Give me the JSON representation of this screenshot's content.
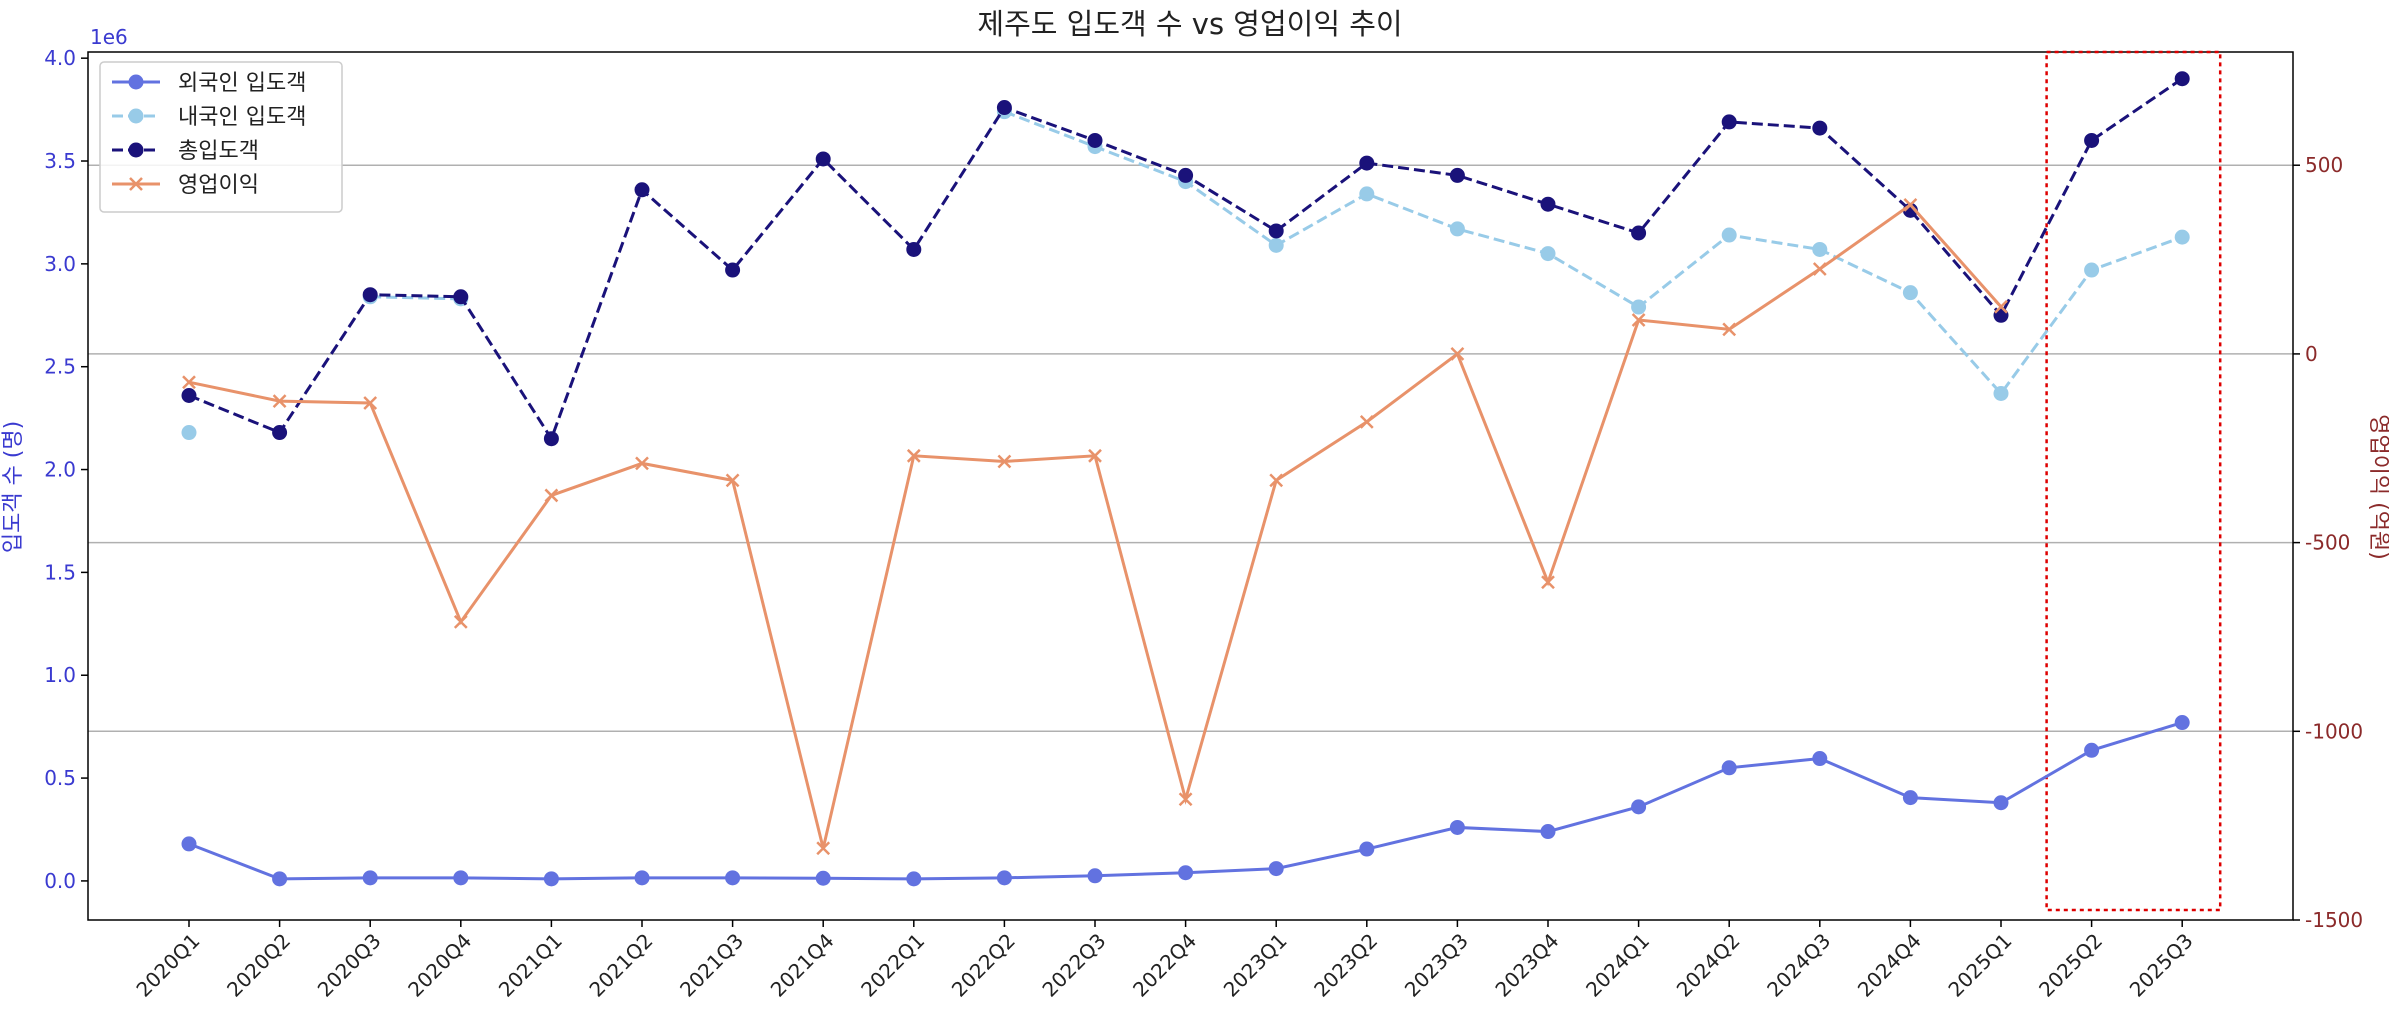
{
  "chart_data": {
    "type": "line",
    "title": "제주도 입도객 수 vs 영업이익 추이",
    "ylabel_left": "입도객 수 (명)",
    "ylabel_right": "영업이익 (억원)",
    "left_offset_text": "1e6",
    "ylim_left": [
      -0.19,
      4.03
    ],
    "ylim_right": [
      -1500,
      800
    ],
    "yticks_left": [
      0.0,
      0.5,
      1.0,
      1.5,
      2.0,
      2.5,
      3.0,
      3.5,
      4.0
    ],
    "yticks_left_labels": [
      "0.0",
      "0.5",
      "1.0",
      "1.5",
      "2.0",
      "2.5",
      "3.0",
      "3.5",
      "4.0"
    ],
    "yticks_right": [
      500,
      0,
      -500,
      -1000,
      -1500
    ],
    "yticks_right_labels": [
      "500",
      "0",
      "-500",
      "-1000",
      "-1500"
    ],
    "grid": "horizontal lines at right-axis ticks",
    "legend_position": "top-left",
    "highlight_categories": [
      "2025Q2",
      "2025Q3"
    ],
    "categories": [
      "2020Q1",
      "2020Q2",
      "2020Q3",
      "2020Q4",
      "2021Q1",
      "2021Q2",
      "2021Q3",
      "2021Q4",
      "2022Q1",
      "2022Q2",
      "2022Q3",
      "2022Q4",
      "2023Q1",
      "2023Q2",
      "2023Q3",
      "2023Q4",
      "2024Q1",
      "2024Q2",
      "2024Q3",
      "2024Q4",
      "2025Q1",
      "2025Q2",
      "2025Q3"
    ],
    "series": [
      {
        "name": "외국인 입도객",
        "axis": "left",
        "color": "#6272e0",
        "style": "solid",
        "marker": "circle",
        "values": [
          0.18,
          0.01,
          0.015,
          0.015,
          0.01,
          0.015,
          0.015,
          0.013,
          0.01,
          0.015,
          0.025,
          0.04,
          0.06,
          0.155,
          0.26,
          0.24,
          0.36,
          0.55,
          0.595,
          0.405,
          0.38,
          0.635,
          0.77
        ]
      },
      {
        "name": "내국인 입도객",
        "axis": "left",
        "color": "#98cbe8",
        "style": "dashed",
        "marker": "circle",
        "values": [
          2.18,
          null,
          2.84,
          2.83,
          null,
          null,
          null,
          null,
          null,
          3.74,
          3.57,
          3.4,
          3.09,
          3.34,
          3.17,
          3.05,
          2.79,
          3.14,
          3.07,
          2.86,
          2.37,
          2.97,
          3.13
        ]
      },
      {
        "name": "총입도객",
        "axis": "left",
        "color": "#1a127a",
        "style": "dashed",
        "marker": "circle",
        "values": [
          2.36,
          2.18,
          2.85,
          2.84,
          2.15,
          3.36,
          2.97,
          3.51,
          3.07,
          3.76,
          3.6,
          3.43,
          3.16,
          3.49,
          3.43,
          3.29,
          3.15,
          3.69,
          3.66,
          3.26,
          2.75,
          3.6,
          3.9
        ]
      },
      {
        "name": "영업이익",
        "axis": "right",
        "color": "#e8926a",
        "style": "solid",
        "marker": "x",
        "values": [
          -75,
          -125,
          -130,
          -710,
          -375,
          -290,
          -335,
          -1310,
          -270,
          -285,
          -270,
          -1180,
          -335,
          -180,
          0,
          -605,
          90,
          65,
          225,
          395,
          125,
          null,
          null
        ]
      }
    ]
  }
}
